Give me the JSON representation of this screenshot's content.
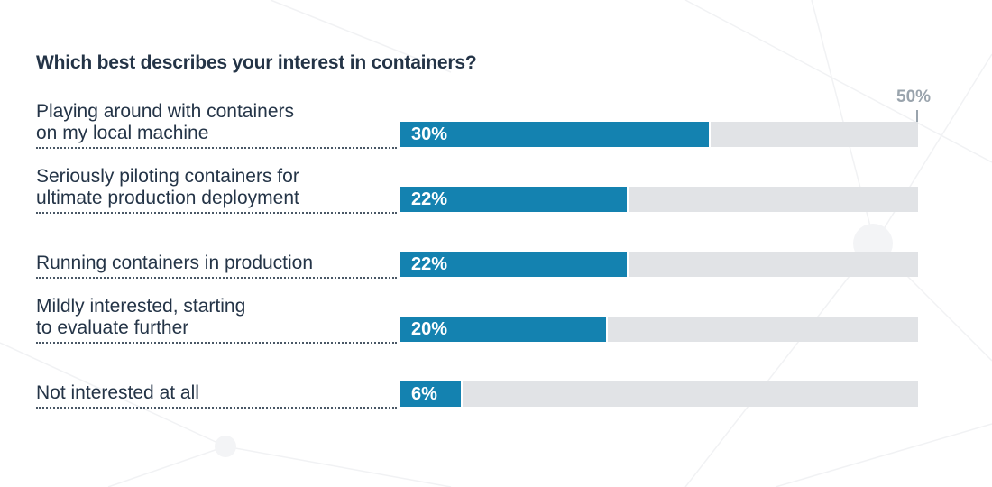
{
  "chart_data": {
    "type": "bar",
    "orientation": "horizontal",
    "title": "Which best describes your interest in containers?",
    "categories": [
      [
        "Playing around with containers",
        "on my local machine"
      ],
      [
        "Seriously piloting containers for",
        "ultimate production deployment"
      ],
      [
        "Running containers in production"
      ],
      [
        "Mildly interested, starting",
        "to evaluate further"
      ],
      [
        "Not interested at all"
      ]
    ],
    "values": [
      30,
      22,
      22,
      20,
      6
    ],
    "value_labels": [
      "30%",
      "22%",
      "22%",
      "20%",
      "6%"
    ],
    "xlim": [
      0,
      50
    ],
    "axis_max_label": "50%",
    "grid": false,
    "legend": "none"
  },
  "colors": {
    "bar": "#1482b0",
    "track": "#e1e3e6",
    "title": "#243447",
    "axis": "#9aa4ad"
  }
}
